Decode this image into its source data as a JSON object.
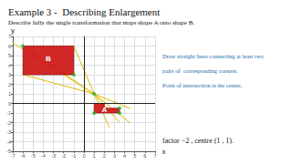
{
  "chart_data": {
    "type": "line",
    "title": "Example 3 -  Describing Enlargement",
    "subtitle": "Describe fully the single transformation that maps shape A onto shape B.",
    "xlabel": "x",
    "ylabel": "y",
    "xlim": [
      -7,
      7
    ],
    "xticks": [
      -7,
      -6,
      -5,
      -4,
      -3,
      -2,
      -1,
      0,
      1,
      2,
      3,
      4,
      5,
      6,
      7
    ],
    "ylim": [
      -5,
      7
    ],
    "yticks": [
      -5,
      -4,
      -3,
      -2,
      -1,
      0,
      1,
      2,
      3,
      4,
      5,
      6,
      7
    ],
    "grid": true,
    "series": [
      {
        "type": "line",
        "color": "#ddbb00",
        "values": [
          [
            -7,
            6.33
          ],
          [
            1,
            1
          ],
          [
            4.5,
            -2.0
          ]
        ]
      },
      {
        "type": "line",
        "color": "#ddbb00",
        "values": [
          [
            -6,
            6
          ],
          [
            1,
            1
          ],
          [
            3.5,
            -2.0
          ]
        ]
      },
      {
        "type": "line",
        "color": "#ddbb00",
        "values": [
          [
            -6,
            3
          ],
          [
            1,
            1
          ],
          [
            4.5,
            -0.5
          ]
        ]
      },
      {
        "type": "line",
        "color": "#ddbb00",
        "values": [
          [
            -1,
            6
          ],
          [
            1,
            1
          ],
          [
            2.5,
            -2.5
          ]
        ]
      },
      {
        "type": "polygon",
        "color": "#cc1111",
        "values": [
          [
            -6,
            3
          ],
          [
            -6,
            6
          ],
          [
            -1,
            6
          ],
          [
            -1,
            3
          ]
        ]
      },
      {
        "type": "polygon",
        "color": "#cc1111",
        "values": [
          [
            1,
            -1
          ],
          [
            1,
            0
          ],
          [
            2,
            0
          ],
          [
            2,
            -0.5
          ],
          [
            3.5,
            -0.5
          ],
          [
            3.5,
            -1
          ]
        ]
      },
      {
        "type": "scatter",
        "color": "#22aa22",
        "values": [
          [
            1,
            1
          ],
          [
            -6,
            6
          ],
          [
            -1,
            3
          ],
          [
            3.5,
            -0.5
          ],
          [
            1,
            -1
          ],
          [
            3.5,
            -1
          ]
        ]
      }
    ],
    "annotations": [
      {
        "text": "B",
        "x": -3.5,
        "y": 4.7
      },
      {
        "text": "A",
        "x": 2.0,
        "y": -0.65
      },
      {
        "text": "Draw straight lines connecting at least two"
      },
      {
        "text": "pairs of  corresponding corners."
      },
      {
        "text": "Point of intersection is the centre."
      },
      {
        "text": "factor −2 , centre (1 , 1)."
      }
    ]
  }
}
